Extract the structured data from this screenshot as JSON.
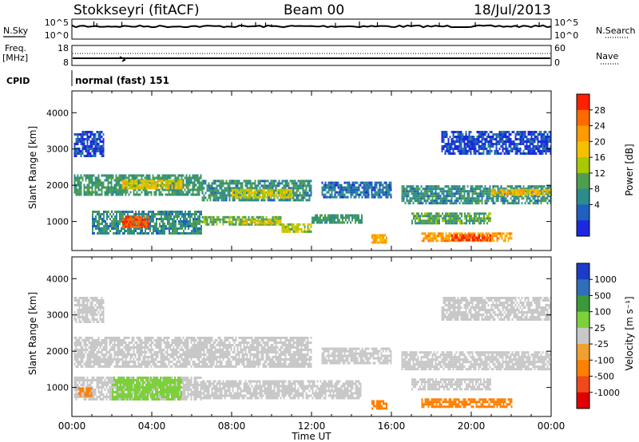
{
  "header": {
    "station": "Stokkseyri (fitACF)",
    "beam": "Beam 00",
    "date": "18/Jul/2013"
  },
  "noise_panel": {
    "left_label": "N.Sky",
    "left_ticks": [
      "10^5",
      "10^0"
    ],
    "right_label": "N.Search",
    "right_ticks": [
      "10^5",
      "10^0"
    ],
    "left_range": [
      0,
      5
    ],
    "spikes": [
      {
        "t": 1.1,
        "v": 4.8
      },
      {
        "t": 1.25,
        "v": 4.3
      },
      {
        "t": 2.5,
        "v": 4.7
      },
      {
        "t": 8.0,
        "v": 4.6
      },
      {
        "t": 8.5,
        "v": 4.2
      },
      {
        "t": 9.2,
        "v": 4.6
      },
      {
        "t": 9.7,
        "v": 4.5
      },
      {
        "t": 10.0,
        "v": 4.0
      },
      {
        "t": 13.2,
        "v": 4.4
      },
      {
        "t": 14.4,
        "v": 4.8
      },
      {
        "t": 15.3,
        "v": 4.6
      },
      {
        "t": 17.0,
        "v": 4.7
      },
      {
        "t": 18.4,
        "v": 4.5
      },
      {
        "t": 20.2,
        "v": 4.6
      },
      {
        "t": 22.3,
        "v": 4.0
      },
      {
        "t": 23.4,
        "v": 4.6
      }
    ]
  },
  "freq_panel": {
    "left_label": "Freq.",
    "left_unit": "[MHz]",
    "left_ticks": [
      "18",
      "8"
    ],
    "right_label": "Nave",
    "right_ticks": [
      "60",
      "0"
    ]
  },
  "cpid": {
    "label": "CPID",
    "value": "normal (fast) 151"
  },
  "power_panel": {
    "ylabel": "Slant Range [km]",
    "yticks": [
      "4000",
      "3000",
      "2000",
      "1000"
    ],
    "cbar_label": "Power [dB]",
    "cbar_ticks": [
      "28",
      "24",
      "20",
      "16",
      "12",
      "8",
      "4"
    ],
    "cbar_colors": [
      "#ff2000",
      "#ff6a00",
      "#ff9a00",
      "#f5c000",
      "#a8c800",
      "#4f9e4f",
      "#2c8c8c",
      "#1f5fbf",
      "#1c28e0"
    ]
  },
  "velocity_panel": {
    "ylabel": "Slant Range [km]",
    "yticks": [
      "4000",
      "3000",
      "2000",
      "1000"
    ],
    "cbar_label": "Velocity [m s⁻¹]",
    "cbar_ticks": [
      "1000",
      "500",
      "100",
      "25",
      "-25",
      "-100",
      "-500",
      "-1000"
    ],
    "cbar_colors": [
      "#1c3cc8",
      "#2f6fb8",
      "#3a9a3a",
      "#7cd13a",
      "#c8c8c8",
      "#f0a030",
      "#ff7f00",
      "#f04a1a",
      "#e00000"
    ]
  },
  "x_axis": {
    "label": "Time UT",
    "ticks": [
      "00:00",
      "04:00",
      "08:00",
      "12:00",
      "16:00",
      "20:00",
      "00:00"
    ]
  },
  "chart_data": {
    "type": "heatmap",
    "title": "Stokkseyri (fitACF)",
    "xlabel": "Time UT",
    "ylabel": "Slant Range [km]",
    "xlim": [
      0,
      24
    ],
    "ylim": [
      200,
      4600
    ],
    "series": [
      {
        "name": "Power [dB]",
        "bands": [
          {
            "t0": 0.1,
            "t1": 6.5,
            "r0": 1750,
            "r1": 2300,
            "level": 10
          },
          {
            "t0": 6.5,
            "t1": 12.0,
            "r0": 1600,
            "r1": 2150,
            "level": 9
          },
          {
            "t0": 2.5,
            "t1": 5.5,
            "r0": 1900,
            "r1": 2150,
            "level": 17
          },
          {
            "t0": 8.0,
            "t1": 11.0,
            "r0": 1700,
            "r1": 1900,
            "level": 16
          },
          {
            "t0": 1.0,
            "t1": 6.5,
            "r0": 650,
            "r1": 1300,
            "level": 9
          },
          {
            "t0": 2.5,
            "t1": 3.8,
            "r0": 850,
            "r1": 1150,
            "level": 26
          },
          {
            "t0": 6.5,
            "t1": 10.5,
            "r0": 900,
            "r1": 1150,
            "level": 12
          },
          {
            "t0": 8.5,
            "t1": 10.5,
            "r0": 950,
            "r1": 1050,
            "level": 17
          },
          {
            "t0": 10.5,
            "t1": 12.0,
            "r0": 750,
            "r1": 950,
            "level": 15
          },
          {
            "t0": 12.0,
            "t1": 14.5,
            "r0": 950,
            "r1": 1200,
            "level": 10
          },
          {
            "t0": 15.0,
            "t1": 15.8,
            "r0": 450,
            "r1": 650,
            "level": 19
          },
          {
            "t0": 17.5,
            "t1": 22.0,
            "r0": 450,
            "r1": 700,
            "level": 20
          },
          {
            "t0": 19.0,
            "t1": 21.0,
            "r0": 500,
            "r1": 650,
            "level": 26
          },
          {
            "t0": 16.5,
            "t1": 24.0,
            "r0": 1500,
            "r1": 2000,
            "level": 9
          },
          {
            "t0": 21.0,
            "t1": 24.0,
            "r0": 1750,
            "r1": 1900,
            "level": 18
          },
          {
            "t0": 17.0,
            "t1": 21.0,
            "r0": 950,
            "r1": 1250,
            "level": 11
          },
          {
            "t0": 0.1,
            "t1": 1.6,
            "r0": 2800,
            "r1": 3500,
            "level": 5
          },
          {
            "t0": 18.5,
            "t1": 24.0,
            "r0": 2900,
            "r1": 3500,
            "level": 5
          },
          {
            "t0": 12.5,
            "t1": 16.0,
            "r0": 1650,
            "r1": 2100,
            "level": 7
          }
        ]
      },
      {
        "name": "Velocity [m s⁻¹]",
        "bands": [
          {
            "t0": 0.1,
            "t1": 12.0,
            "r0": 1600,
            "r1": 2400,
            "level": 0
          },
          {
            "t0": 0.1,
            "t1": 6.5,
            "r0": 650,
            "r1": 1300,
            "level": 0
          },
          {
            "t0": 2.0,
            "t1": 5.5,
            "r0": 700,
            "r1": 1300,
            "level": 60
          },
          {
            "t0": 0.3,
            "t1": 1.0,
            "r0": 750,
            "r1": 1000,
            "level": -300
          },
          {
            "t0": 6.5,
            "t1": 14.5,
            "r0": 700,
            "r1": 1200,
            "level": 0
          },
          {
            "t0": 15.0,
            "t1": 15.8,
            "r0": 450,
            "r1": 650,
            "level": -300
          },
          {
            "t0": 17.5,
            "t1": 22.0,
            "r0": 450,
            "r1": 700,
            "level": -300
          },
          {
            "t0": 16.5,
            "t1": 24.0,
            "r0": 1500,
            "r1": 2000,
            "level": 0
          },
          {
            "t0": 17.0,
            "t1": 21.0,
            "r0": 950,
            "r1": 1250,
            "level": 0
          },
          {
            "t0": 18.5,
            "t1": 24.0,
            "r0": 2900,
            "r1": 3500,
            "level": 0
          },
          {
            "t0": 0.1,
            "t1": 1.6,
            "r0": 2800,
            "r1": 3500,
            "level": 0
          },
          {
            "t0": 12.5,
            "t1": 16.0,
            "r0": 1650,
            "r1": 2100,
            "level": 0
          }
        ]
      }
    ]
  }
}
